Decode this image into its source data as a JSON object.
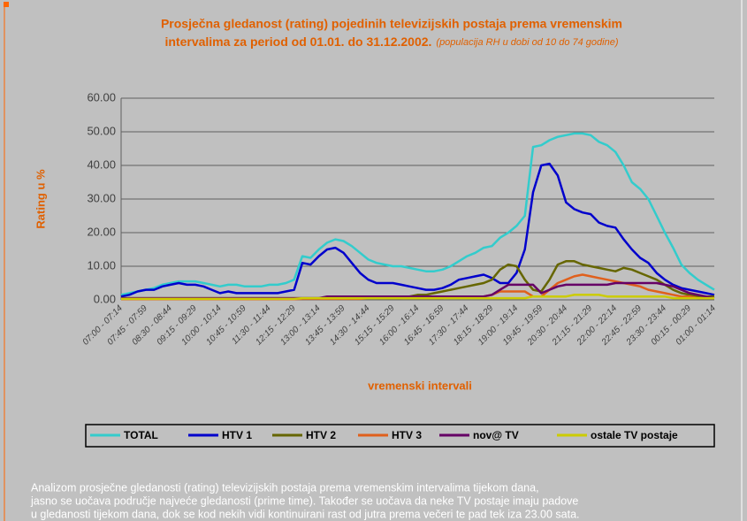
{
  "chart_data": {
    "type": "line",
    "title": [
      "Prosječna gledanost (rating) pojedinih televizijskih postaja prema vremenskim",
      "intervalima za period od 01.01. do 31.12.2002."
    ],
    "subtitle": "(populacija RH u dobi od 10 do 74 godine)",
    "y_label": "Rating u %",
    "x_label": "vremenski intervali",
    "categories": [
      "07:00 - 07:14",
      null,
      null,
      "07:45 - 07:59",
      null,
      null,
      "08:30 - 08:44",
      null,
      null,
      "09:15 - 09:29",
      null,
      null,
      "10:00 - 10:14",
      null,
      null,
      "10:45 - 10:59",
      null,
      null,
      "11:30 - 11:44",
      null,
      null,
      "12:15 - 12:29",
      null,
      null,
      "13:00 - 13:14",
      null,
      null,
      "13:45 - 13:59",
      null,
      null,
      "14:30 - 14:44",
      null,
      null,
      "15:15 - 15:29",
      null,
      null,
      "16:00 - 16:14",
      null,
      null,
      "16:45 - 16:59",
      null,
      null,
      "17:30 - 17:44",
      null,
      null,
      "18:15 - 18:29",
      null,
      null,
      "19:00 - 19:14",
      null,
      null,
      "19:45 - 19:59",
      null,
      null,
      "20:30 - 20:44",
      null,
      null,
      "21:15 - 21:29",
      null,
      null,
      "22:00 - 22:14",
      null,
      null,
      "22:45 - 22:59",
      null,
      null,
      "23:30 - 23:44",
      null,
      null,
      "00:15 - 00:29",
      null,
      null,
      "01:00 - 01:14"
    ],
    "series": [
      {
        "name": "TOTAL",
        "color": "#33cccc",
        "values": [
          1.5,
          2,
          2.5,
          3,
          3.5,
          4.5,
          5,
          5.5,
          5.5,
          5.5,
          5,
          4.5,
          4,
          4.5,
          4.5,
          4,
          4,
          4,
          4.5,
          4.5,
          5,
          6,
          13,
          12.5,
          15,
          17,
          18,
          17.5,
          16,
          14,
          12,
          11,
          10.5,
          10,
          10,
          9.5,
          9,
          8.5,
          8.5,
          9,
          10,
          11.5,
          13,
          14,
          15.5,
          16,
          18.5,
          20,
          22,
          25,
          45.5,
          46,
          47.5,
          48.5,
          49,
          49.5,
          49.5,
          49,
          47,
          46,
          44,
          40,
          35,
          33,
          30,
          25,
          20,
          15.5,
          10.5,
          8,
          6,
          4.5,
          3
        ]
      },
      {
        "name": "HTV 1",
        "color": "#0000cc",
        "values": [
          1,
          1.5,
          2.5,
          3,
          3,
          4,
          4.5,
          5,
          4.5,
          4.5,
          4,
          3,
          2,
          2.5,
          2,
          2,
          2,
          2,
          2,
          2,
          2.5,
          3,
          11,
          10.5,
          13,
          15,
          15.5,
          14,
          11,
          8,
          6,
          5,
          5,
          5,
          4.5,
          4,
          3.5,
          3,
          3,
          3.5,
          4.5,
          6,
          6.5,
          7,
          7.5,
          6.5,
          5,
          5,
          8,
          15,
          32,
          40,
          40.5,
          37,
          29,
          27,
          26,
          25.5,
          23,
          22,
          21.5,
          18,
          15,
          12.5,
          11,
          8,
          6,
          4.5,
          3.5,
          3,
          2.5,
          2,
          1.5
        ]
      },
      {
        "name": "HTV 2",
        "color": "#666600",
        "values": [
          0.5,
          0.5,
          0.5,
          0.5,
          0.5,
          0.5,
          0.5,
          0.5,
          0.5,
          0.5,
          0.5,
          0.5,
          0.5,
          0.5,
          0.5,
          0.5,
          0.5,
          0.5,
          0.5,
          0.5,
          0.5,
          0.5,
          0.5,
          0.5,
          0.5,
          0.5,
          0.5,
          0.5,
          0.5,
          0.5,
          0.5,
          0.5,
          0.5,
          0.5,
          0.5,
          1,
          1.5,
          1.5,
          2,
          2.5,
          3,
          3.5,
          4,
          4.5,
          5,
          6,
          9,
          10.5,
          10,
          6,
          3,
          2.5,
          6,
          10.5,
          11.5,
          11.5,
          10.5,
          10,
          9.5,
          9,
          8.5,
          9.5,
          9,
          8,
          7,
          6,
          4.5,
          3,
          2,
          1.5,
          1,
          1,
          1
        ]
      },
      {
        "name": "HTV 3",
        "color": "#e0601c",
        "values": [
          0.2,
          0.2,
          0.2,
          0.2,
          0.2,
          0.2,
          0.2,
          0.2,
          0.2,
          0.2,
          0.2,
          0.2,
          0.2,
          0.2,
          0.2,
          0.2,
          0.2,
          0.2,
          0.2,
          0.2,
          0.2,
          0.2,
          0.3,
          0.3,
          0.3,
          0.3,
          0.3,
          0.3,
          0.3,
          0.3,
          0.5,
          0.5,
          0.5,
          0.5,
          0.5,
          0.5,
          0.5,
          0.5,
          0.5,
          0.5,
          1,
          1,
          1,
          1,
          1,
          1.5,
          2.5,
          2.5,
          2.5,
          2.5,
          1,
          1,
          3,
          5,
          6,
          7,
          7.5,
          7,
          6.5,
          6,
          5.5,
          5,
          4.5,
          4,
          3,
          2.5,
          2,
          1.5,
          1,
          1,
          0.5,
          0.5,
          0.5
        ]
      },
      {
        "name": "nov@ TV",
        "color": "#660066",
        "values": [
          0.5,
          0.5,
          0.5,
          0.5,
          0.5,
          0.5,
          0.5,
          0.5,
          0.5,
          0.5,
          0.5,
          0.5,
          0.5,
          0.5,
          0.5,
          0.5,
          0.5,
          0.5,
          0.5,
          0.5,
          0.5,
          0.5,
          0.5,
          0.5,
          0.5,
          1,
          1,
          1,
          1,
          1,
          1,
          1,
          1,
          1,
          1,
          1,
          1,
          1,
          1,
          1,
          1,
          1,
          1,
          1,
          1,
          1.5,
          3,
          4.5,
          4.5,
          4.5,
          4.5,
          2,
          3,
          4,
          4.5,
          4.5,
          4.5,
          4.5,
          4.5,
          4.5,
          5,
          5,
          5,
          5,
          5,
          5,
          4.5,
          4,
          3,
          2,
          1.5,
          1,
          0.5
        ]
      },
      {
        "name": "ostale TV postaje",
        "color": "#cccc00",
        "values": [
          0.3,
          0.3,
          0.3,
          0.3,
          0.3,
          0.3,
          0.3,
          0.3,
          0.3,
          0.3,
          0.3,
          0.3,
          0.3,
          0.3,
          0.3,
          0.3,
          0.3,
          0.3,
          0.3,
          0.3,
          0.3,
          0.3,
          0.5,
          0.5,
          0.5,
          0.5,
          0.5,
          0.5,
          0.5,
          0.5,
          0.5,
          0.5,
          0.5,
          0.5,
          0.5,
          0.5,
          0.5,
          0.5,
          0.5,
          0.5,
          0.5,
          0.5,
          0.5,
          0.5,
          0.5,
          0.5,
          0.5,
          0.5,
          0.5,
          0.5,
          1,
          1,
          1,
          1,
          1,
          1.5,
          1.5,
          1.5,
          1.5,
          1,
          1,
          1,
          1,
          1,
          1,
          1,
          1,
          0.5,
          0.5,
          0.5,
          0.5,
          0.5,
          0.5
        ]
      }
    ],
    "ylim": [
      0,
      60
    ],
    "yticks": [
      {
        "value": 0,
        "label": "0.00"
      },
      {
        "value": 10,
        "label": "10.00"
      },
      {
        "value": 20,
        "label": "20.00"
      },
      {
        "value": 30,
        "label": "30.00"
      },
      {
        "value": 40,
        "label": "40.00"
      },
      {
        "value": 50,
        "label": "50.00"
      },
      {
        "value": 60,
        "label": "60.00"
      }
    ],
    "grid": true,
    "legend": "bottom"
  },
  "caption": [
    "Analizom prosječne gledanosti (rating) televizijskih postaja prema vremenskim intervalima tijekom dana,",
    "jasno se uočava područje najveće gledanosti (prime time). Također se uočava da neke TV postaje imaju padove",
    "u gledanosti tijekom dana, dok se kod nekih vidi kontinuirani rast od jutra prema večeri te pad tek iza 23.00 sata."
  ]
}
